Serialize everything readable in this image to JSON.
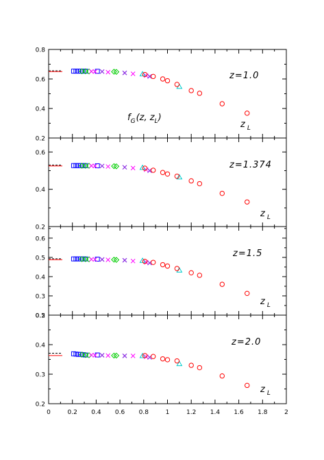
{
  "chart_data": {
    "type": "scatter",
    "x_range": [
      0,
      2
    ],
    "x_ticks": [
      "0",
      "0.2",
      "0.4",
      "0.6",
      "0.8",
      "1",
      "1.2",
      "1.4",
      "1.6",
      "1.8",
      "2"
    ],
    "x_symbol": "z",
    "x_symbol_sub": "L",
    "function_label": {
      "main": "f",
      "sub": "G",
      "args_open": "(z, z",
      "args_sub": "L",
      "args_close": ")"
    },
    "colors": {
      "circle": "#ff0000",
      "triangle": "#00cccc",
      "cross": "#8a2be2",
      "times": "#ff00ff",
      "diamond": "#00cc00",
      "square": "#0000ff",
      "hline_solid": "#ff0000",
      "hline_dashed": "#000000"
    },
    "panels": [
      {
        "label": "z=1.0",
        "ylim": [
          0.2,
          0.8
        ],
        "y_ticks": [
          0.2,
          0.4,
          0.6,
          0.8
        ],
        "y_tick_labels": [
          "0.2",
          "0.4",
          "0.6",
          "0.8"
        ],
        "reference_solid": 0.65,
        "reference_dashed": 0.655,
        "series": [
          {
            "marker": "square",
            "points": [
              [
                0.21,
                0.653
              ],
              [
                0.23,
                0.653
              ],
              [
                0.25,
                0.653
              ],
              [
                0.27,
                0.653
              ],
              [
                0.29,
                0.653
              ],
              [
                0.31,
                0.653
              ],
              [
                0.41,
                0.652
              ]
            ]
          },
          {
            "marker": "diamond",
            "points": [
              [
                0.28,
                0.652
              ],
              [
                0.31,
                0.652
              ],
              [
                0.34,
                0.651
              ],
              [
                0.55,
                0.649
              ],
              [
                0.57,
                0.648
              ]
            ]
          },
          {
            "marker": "times",
            "points": [
              [
                0.36,
                0.651
              ],
              [
                0.39,
                0.65
              ],
              [
                0.5,
                0.646
              ],
              [
                0.71,
                0.635
              ],
              [
                0.82,
                0.623
              ]
            ]
          },
          {
            "marker": "cross",
            "points": [
              [
                0.45,
                0.65
              ],
              [
                0.64,
                0.641
              ],
              [
                0.85,
                0.617
              ]
            ]
          },
          {
            "marker": "triangle",
            "points": [
              [
                0.79,
                0.633
              ],
              [
                1.1,
                0.548
              ]
            ]
          },
          {
            "marker": "circle",
            "points": [
              [
                0.81,
                0.63
              ],
              [
                0.88,
                0.617
              ],
              [
                0.96,
                0.6
              ],
              [
                1.0,
                0.588
              ],
              [
                1.08,
                0.563
              ],
              [
                1.2,
                0.521
              ],
              [
                1.27,
                0.503
              ],
              [
                1.46,
                0.432
              ],
              [
                1.67,
                0.368
              ]
            ]
          }
        ]
      },
      {
        "label": "z=1.374",
        "ylim": [
          0.2,
          0.675
        ],
        "y_ticks": [
          0.2,
          0.4,
          0.6
        ],
        "y_tick_labels": [
          "0.2",
          "0.4",
          "0.6"
        ],
        "reference_solid": 0.525,
        "reference_dashed": 0.53,
        "series": [
          {
            "marker": "square",
            "points": [
              [
                0.21,
                0.527
              ],
              [
                0.23,
                0.527
              ],
              [
                0.25,
                0.527
              ],
              [
                0.27,
                0.527
              ],
              [
                0.29,
                0.527
              ],
              [
                0.31,
                0.527
              ],
              [
                0.41,
                0.526
              ]
            ]
          },
          {
            "marker": "diamond",
            "points": [
              [
                0.28,
                0.526
              ],
              [
                0.31,
                0.526
              ],
              [
                0.34,
                0.526
              ],
              [
                0.55,
                0.524
              ],
              [
                0.57,
                0.523
              ]
            ]
          },
          {
            "marker": "times",
            "points": [
              [
                0.36,
                0.526
              ],
              [
                0.39,
                0.525
              ],
              [
                0.5,
                0.522
              ],
              [
                0.71,
                0.514
              ],
              [
                0.82,
                0.505
              ]
            ]
          },
          {
            "marker": "cross",
            "points": [
              [
                0.45,
                0.525
              ],
              [
                0.64,
                0.518
              ],
              [
                0.85,
                0.5
              ]
            ]
          },
          {
            "marker": "triangle",
            "points": [
              [
                0.79,
                0.516
              ],
              [
                1.1,
                0.465
              ]
            ]
          },
          {
            "marker": "circle",
            "points": [
              [
                0.81,
                0.513
              ],
              [
                0.88,
                0.502
              ],
              [
                0.96,
                0.49
              ],
              [
                1.0,
                0.482
              ],
              [
                1.08,
                0.47
              ],
              [
                1.2,
                0.445
              ],
              [
                1.27,
                0.43
              ],
              [
                1.46,
                0.378
              ],
              [
                1.67,
                0.332
              ]
            ]
          }
        ]
      },
      {
        "label": "z=1.5",
        "ylim": [
          0.2,
          0.66
        ],
        "y_ticks": [
          0.2,
          0.3,
          0.4,
          0.5,
          0.6
        ],
        "y_tick_labels": [
          "0.2",
          "0.3",
          "0.4",
          "0.5",
          "0.6"
        ],
        "reference_solid": 0.488,
        "reference_dashed": 0.493,
        "series": [
          {
            "marker": "square",
            "points": [
              [
                0.21,
                0.492
              ],
              [
                0.23,
                0.492
              ],
              [
                0.25,
                0.492
              ],
              [
                0.27,
                0.492
              ],
              [
                0.29,
                0.492
              ],
              [
                0.31,
                0.492
              ],
              [
                0.41,
                0.491
              ]
            ]
          },
          {
            "marker": "diamond",
            "points": [
              [
                0.28,
                0.491
              ],
              [
                0.31,
                0.491
              ],
              [
                0.34,
                0.49
              ],
              [
                0.55,
                0.488
              ],
              [
                0.57,
                0.487
              ]
            ]
          },
          {
            "marker": "times",
            "points": [
              [
                0.36,
                0.49
              ],
              [
                0.39,
                0.489
              ],
              [
                0.5,
                0.487
              ],
              [
                0.71,
                0.481
              ],
              [
                0.82,
                0.475
              ]
            ]
          },
          {
            "marker": "cross",
            "points": [
              [
                0.45,
                0.489
              ],
              [
                0.64,
                0.485
              ],
              [
                0.85,
                0.471
              ]
            ]
          },
          {
            "marker": "triangle",
            "points": [
              [
                0.79,
                0.483
              ],
              [
                1.1,
                0.433
              ]
            ]
          },
          {
            "marker": "circle",
            "points": [
              [
                0.81,
                0.479
              ],
              [
                0.88,
                0.474
              ],
              [
                0.96,
                0.462
              ],
              [
                1.0,
                0.455
              ],
              [
                1.08,
                0.442
              ],
              [
                1.2,
                0.42
              ],
              [
                1.27,
                0.407
              ],
              [
                1.46,
                0.36
              ],
              [
                1.67,
                0.313
              ]
            ]
          }
        ]
      },
      {
        "label": "z=2.0",
        "ylim": [
          0.2,
          0.5
        ],
        "y_ticks": [
          0.2,
          0.3,
          0.4,
          0.5
        ],
        "y_tick_labels": [
          "0.2",
          "0.3",
          "0.4",
          "0.5"
        ],
        "reference_solid": 0.363,
        "reference_dashed": 0.371,
        "series": [
          {
            "marker": "square",
            "points": [
              [
                0.21,
                0.369
              ],
              [
                0.23,
                0.368
              ],
              [
                0.25,
                0.367
              ],
              [
                0.27,
                0.367
              ],
              [
                0.29,
                0.366
              ],
              [
                0.31,
                0.365
              ],
              [
                0.41,
                0.365
              ]
            ]
          },
          {
            "marker": "diamond",
            "points": [
              [
                0.28,
                0.366
              ],
              [
                0.31,
                0.365
              ],
              [
                0.34,
                0.364
              ],
              [
                0.55,
                0.363
              ],
              [
                0.57,
                0.363
              ]
            ]
          },
          {
            "marker": "times",
            "points": [
              [
                0.36,
                0.365
              ],
              [
                0.39,
                0.364
              ],
              [
                0.5,
                0.363
              ],
              [
                0.71,
                0.362
              ],
              [
                0.82,
                0.359
              ]
            ]
          },
          {
            "marker": "cross",
            "points": [
              [
                0.45,
                0.364
              ],
              [
                0.64,
                0.362
              ],
              [
                0.85,
                0.357
              ]
            ]
          },
          {
            "marker": "triangle",
            "points": [
              [
                0.79,
                0.362
              ],
              [
                1.1,
                0.335
              ]
            ]
          },
          {
            "marker": "circle",
            "points": [
              [
                0.81,
                0.363
              ],
              [
                0.88,
                0.36
              ],
              [
                0.96,
                0.352
              ],
              [
                1.0,
                0.349
              ],
              [
                1.08,
                0.345
              ],
              [
                1.2,
                0.33
              ],
              [
                1.27,
                0.322
              ],
              [
                1.46,
                0.294
              ],
              [
                1.67,
                0.262
              ]
            ]
          }
        ]
      }
    ]
  }
}
